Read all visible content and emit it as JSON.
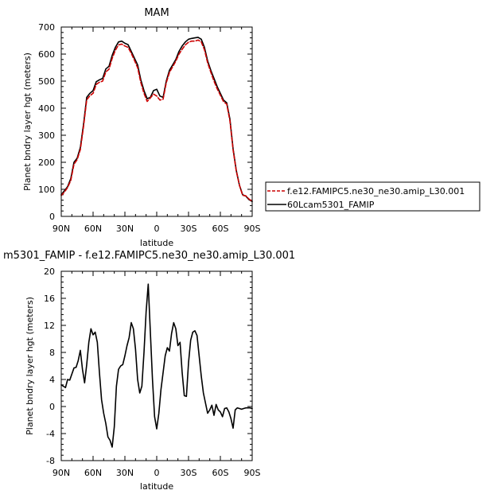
{
  "chart_data": [
    {
      "type": "line",
      "title": "MAM",
      "xlabel": "latitude",
      "ylabel": "Planet bndry layer hgt (meters)",
      "xlim": [
        90,
        -90
      ],
      "ylim": [
        0,
        700
      ],
      "x_ticks": [
        {
          "value": 90,
          "label": "90N"
        },
        {
          "value": 60,
          "label": "60N"
        },
        {
          "value": 30,
          "label": "30N"
        },
        {
          "value": 0,
          "label": "0"
        },
        {
          "value": -30,
          "label": "30S"
        },
        {
          "value": -60,
          "label": "60S"
        },
        {
          "value": -90,
          "label": "90S"
        }
      ],
      "y_ticks": [
        0,
        100,
        200,
        300,
        400,
        500,
        600,
        700
      ],
      "legend": [
        {
          "label": "f.e12.FAMIPC5.ne30_ne30.amip_L30.001",
          "color": "#cc0000",
          "dash": "dashed"
        },
        {
          "label": "60Lcam5301_FAMIP",
          "color": "#000000",
          "dash": "solid"
        }
      ],
      "series": [
        {
          "name": "60Lcam5301_FAMIP",
          "color": "#000000",
          "x": [
            90,
            87,
            84,
            81,
            78,
            75,
            72,
            69,
            66,
            63,
            60,
            57,
            54,
            51,
            48,
            45,
            42,
            39,
            36,
            33,
            30,
            27,
            24,
            21,
            18,
            15,
            12,
            9,
            6,
            3,
            0,
            -3,
            -6,
            -9,
            -12,
            -15,
            -18,
            -21,
            -24,
            -27,
            -30,
            -33,
            -36,
            -39,
            -42,
            -45,
            -48,
            -51,
            -54,
            -57,
            -60,
            -63,
            -66,
            -69,
            -72,
            -75,
            -78,
            -81,
            -84,
            -87,
            -90
          ],
          "y": [
            80,
            95,
            110,
            140,
            200,
            215,
            255,
            340,
            440,
            455,
            465,
            498,
            505,
            510,
            545,
            555,
            595,
            625,
            645,
            648,
            640,
            635,
            610,
            585,
            560,
            505,
            465,
            435,
            440,
            465,
            470,
            445,
            440,
            500,
            540,
            560,
            580,
            610,
            630,
            645,
            655,
            658,
            660,
            662,
            655,
            625,
            575,
            540,
            510,
            480,
            455,
            430,
            420,
            360,
            250,
            170,
            115,
            80,
            75,
            62,
            55
          ]
        },
        {
          "name": "f.e12.FAMIPC5.ne30_ne30.amip_L30.001",
          "color": "#cc0000",
          "x": [
            90,
            87,
            84,
            81,
            78,
            75,
            72,
            69,
            66,
            63,
            60,
            57,
            54,
            51,
            48,
            45,
            42,
            39,
            36,
            33,
            30,
            27,
            24,
            21,
            18,
            15,
            12,
            9,
            6,
            3,
            0,
            -3,
            -6,
            -9,
            -12,
            -15,
            -18,
            -21,
            -24,
            -27,
            -30,
            -33,
            -36,
            -39,
            -42,
            -45,
            -48,
            -51,
            -54,
            -57,
            -60,
            -63,
            -66,
            -69,
            -72,
            -75,
            -78,
            -81,
            -84,
            -87,
            -90
          ],
          "y": [
            77,
            90,
            107,
            133,
            193,
            210,
            247,
            332,
            431,
            446,
            455,
            488,
            496,
            500,
            534,
            544,
            584,
            614,
            634,
            637,
            630,
            625,
            603,
            577,
            550,
            495,
            455,
            425,
            438,
            452,
            445,
            430,
            433,
            494,
            532,
            553,
            574,
            600,
            618,
            634,
            644,
            648,
            648,
            652,
            645,
            616,
            568,
            533,
            500,
            472,
            448,
            424,
            415,
            354,
            246,
            168,
            115,
            78,
            76,
            64,
            56
          ]
        }
      ]
    },
    {
      "type": "line",
      "title": "m5301_FAMIP - f.e12.FAMIPC5.ne30_ne30.amip_L30.001",
      "xlabel": "latitude",
      "ylabel": "Planet bndry layer hgt (meters)",
      "xlim": [
        90,
        -90
      ],
      "ylim": [
        -8,
        20
      ],
      "x_ticks": [
        {
          "value": 90,
          "label": "90N"
        },
        {
          "value": 60,
          "label": "60N"
        },
        {
          "value": 30,
          "label": "30N"
        },
        {
          "value": 0,
          "label": "0"
        },
        {
          "value": -30,
          "label": "30S"
        },
        {
          "value": -60,
          "label": "60S"
        },
        {
          "value": -90,
          "label": "90S"
        }
      ],
      "y_ticks": [
        -8,
        -4,
        0,
        4,
        8,
        12,
        16,
        20
      ],
      "series": [
        {
          "color": "#000000",
          "x": [
            90,
            88,
            86,
            84,
            82,
            80,
            78,
            76,
            74,
            72,
            70,
            68,
            66,
            64,
            62,
            60,
            58,
            56,
            54,
            52,
            50,
            48,
            46,
            44,
            42,
            40,
            38,
            36,
            34,
            32,
            30,
            28,
            26,
            24,
            22,
            20,
            18,
            16,
            14,
            12,
            10,
            8,
            6,
            4,
            2,
            0,
            -2,
            -4,
            -6,
            -8,
            -10,
            -12,
            -14,
            -16,
            -18,
            -20,
            -22,
            -24,
            -26,
            -28,
            -30,
            -32,
            -34,
            -36,
            -38,
            -40,
            -42,
            -44,
            -46,
            -48,
            -50,
            -52,
            -54,
            -56,
            -58,
            -60,
            -62,
            -64,
            -66,
            -68,
            -70,
            -72,
            -74,
            -76,
            -78,
            -80,
            -82,
            -84,
            -86,
            -88,
            -90
          ],
          "y": [
            3.2,
            3.0,
            2.8,
            4.0,
            3.9,
            4.8,
            5.7,
            5.8,
            6.8,
            8.3,
            5.5,
            3.5,
            6.2,
            9.5,
            11.5,
            10.6,
            11.0,
            9.5,
            5.0,
            1.0,
            -1.0,
            -2.5,
            -4.5,
            -5.0,
            -6.0,
            -3.0,
            3.0,
            5.5,
            6.0,
            6.2,
            7.5,
            9.0,
            10.2,
            12.4,
            11.5,
            8.5,
            4.0,
            2.0,
            3.0,
            8.0,
            14.0,
            18.1,
            11.0,
            4.0,
            -1.5,
            -3.3,
            -1.0,
            2.5,
            5.0,
            7.5,
            8.7,
            8.2,
            10.8,
            12.4,
            11.5,
            9.0,
            9.5,
            5.0,
            1.6,
            1.5,
            6.5,
            9.8,
            11.0,
            11.2,
            10.5,
            7.5,
            4.5,
            2.0,
            0.5,
            -1.0,
            -0.5,
            0.2,
            -1.3,
            0.3,
            -0.5,
            -0.8,
            -1.5,
            -0.3,
            -0.2,
            -0.8,
            -1.8,
            -3.2,
            -0.5,
            -0.2,
            -0.3,
            -0.4,
            -0.3,
            -0.2,
            -0.2,
            -0.2,
            -0.3
          ]
        }
      ]
    }
  ]
}
